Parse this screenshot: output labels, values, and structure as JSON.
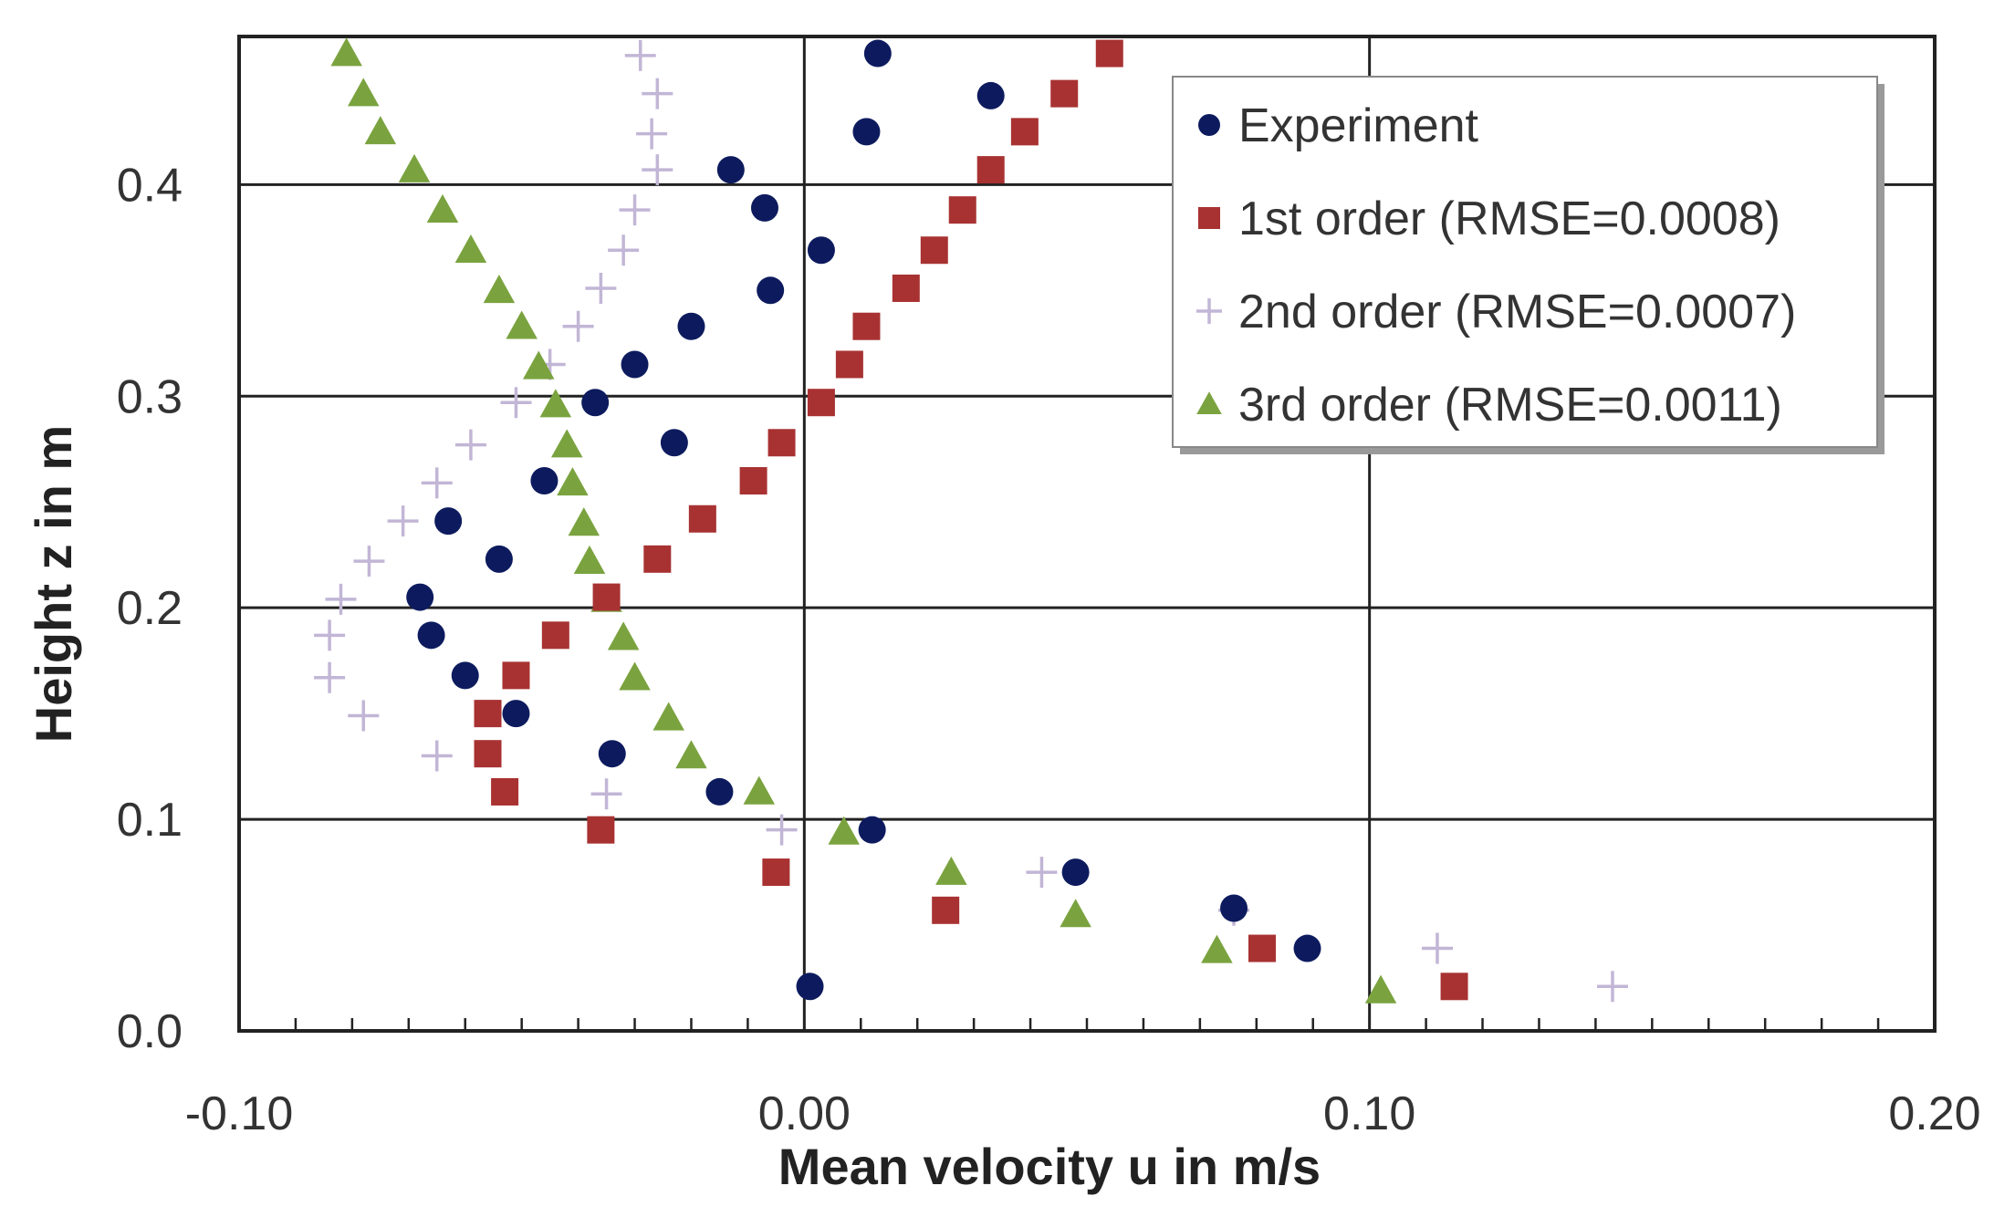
{
  "chart_data": {
    "type": "scatter",
    "title": "",
    "xlabel": "Mean velocity u in m/s",
    "ylabel": "Height z in m",
    "xlim": [
      -0.1,
      0.2
    ],
    "ylim": [
      0.0,
      0.47
    ],
    "x_ticks": [
      -0.1,
      0.0,
      0.1,
      0.2
    ],
    "x_tick_labels": [
      "-0.10",
      "0.00",
      "0.10",
      "0.20"
    ],
    "y_ticks": [
      0.0,
      0.1,
      0.2,
      0.3,
      0.4
    ],
    "y_tick_labels": [
      "0.0",
      "0.1",
      "0.2",
      "0.3",
      "0.4"
    ],
    "grid": true,
    "legend_position": "top-right",
    "series": [
      {
        "name": "Experiment",
        "marker": "circle",
        "color": "#0d1b5e",
        "points": [
          [
            0.013,
            0.462
          ],
          [
            0.011,
            0.425
          ],
          [
            0.033,
            0.442
          ],
          [
            -0.013,
            0.407
          ],
          [
            -0.007,
            0.389
          ],
          [
            0.003,
            0.369
          ],
          [
            -0.006,
            0.35
          ],
          [
            -0.02,
            0.333
          ],
          [
            -0.03,
            0.315
          ],
          [
            -0.037,
            0.297
          ],
          [
            -0.023,
            0.278
          ],
          [
            -0.046,
            0.26
          ],
          [
            -0.063,
            0.241
          ],
          [
            -0.054,
            0.223
          ],
          [
            -0.068,
            0.205
          ],
          [
            -0.066,
            0.187
          ],
          [
            -0.06,
            0.168
          ],
          [
            -0.051,
            0.15
          ],
          [
            -0.034,
            0.131
          ],
          [
            -0.015,
            0.113
          ],
          [
            0.012,
            0.095
          ],
          [
            0.048,
            0.075
          ],
          [
            0.076,
            0.058
          ],
          [
            0.089,
            0.039
          ],
          [
            0.001,
            0.021
          ]
        ]
      },
      {
        "name": "1st order (RMSE=0.0008)",
        "marker": "square",
        "color": "#a83232",
        "points": [
          [
            0.054,
            0.462
          ],
          [
            0.046,
            0.443
          ],
          [
            0.039,
            0.425
          ],
          [
            0.033,
            0.407
          ],
          [
            0.028,
            0.388
          ],
          [
            0.023,
            0.369
          ],
          [
            0.018,
            0.351
          ],
          [
            0.011,
            0.333
          ],
          [
            0.008,
            0.315
          ],
          [
            0.003,
            0.297
          ],
          [
            -0.004,
            0.278
          ],
          [
            -0.009,
            0.26
          ],
          [
            -0.018,
            0.242
          ],
          [
            -0.026,
            0.223
          ],
          [
            -0.035,
            0.205
          ],
          [
            -0.044,
            0.187
          ],
          [
            -0.051,
            0.168
          ],
          [
            -0.056,
            0.15
          ],
          [
            -0.056,
            0.131
          ],
          [
            -0.053,
            0.113
          ],
          [
            -0.036,
            0.095
          ],
          [
            -0.005,
            0.075
          ],
          [
            0.025,
            0.057
          ],
          [
            0.081,
            0.039
          ],
          [
            0.115,
            0.021
          ]
        ]
      },
      {
        "name": "2nd order (RMSE=0.0007)",
        "marker": "plus",
        "color": "#c2b6d6",
        "points": [
          [
            -0.029,
            0.461
          ],
          [
            -0.026,
            0.443
          ],
          [
            -0.027,
            0.424
          ],
          [
            -0.026,
            0.407
          ],
          [
            -0.03,
            0.388
          ],
          [
            -0.032,
            0.369
          ],
          [
            -0.036,
            0.351
          ],
          [
            -0.04,
            0.333
          ],
          [
            -0.045,
            0.315
          ],
          [
            -0.051,
            0.297
          ],
          [
            -0.059,
            0.277
          ],
          [
            -0.065,
            0.259
          ],
          [
            -0.071,
            0.241
          ],
          [
            -0.077,
            0.222
          ],
          [
            -0.082,
            0.204
          ],
          [
            -0.084,
            0.187
          ],
          [
            -0.084,
            0.167
          ],
          [
            -0.078,
            0.149
          ],
          [
            -0.065,
            0.13
          ],
          [
            -0.035,
            0.112
          ],
          [
            -0.004,
            0.095
          ],
          [
            0.042,
            0.075
          ],
          [
            0.076,
            0.057
          ],
          [
            0.112,
            0.039
          ],
          [
            0.143,
            0.021
          ]
        ]
      },
      {
        "name": "3rd order (RMSE=0.0011)",
        "marker": "triangle",
        "color": "#7aa33f",
        "points": [
          [
            -0.081,
            0.462
          ],
          [
            -0.078,
            0.443
          ],
          [
            -0.075,
            0.425
          ],
          [
            -0.069,
            0.407
          ],
          [
            -0.064,
            0.388
          ],
          [
            -0.059,
            0.369
          ],
          [
            -0.054,
            0.35
          ],
          [
            -0.05,
            0.333
          ],
          [
            -0.047,
            0.314
          ],
          [
            -0.044,
            0.296
          ],
          [
            -0.042,
            0.277
          ],
          [
            -0.041,
            0.259
          ],
          [
            -0.039,
            0.24
          ],
          [
            -0.038,
            0.222
          ],
          [
            -0.035,
            0.204
          ],
          [
            -0.032,
            0.186
          ],
          [
            -0.03,
            0.167
          ],
          [
            -0.024,
            0.148
          ],
          [
            -0.02,
            0.13
          ],
          [
            -0.008,
            0.113
          ],
          [
            0.007,
            0.094
          ],
          [
            0.026,
            0.075
          ],
          [
            0.048,
            0.055
          ],
          [
            0.073,
            0.038
          ],
          [
            0.102,
            0.019
          ]
        ]
      }
    ]
  }
}
